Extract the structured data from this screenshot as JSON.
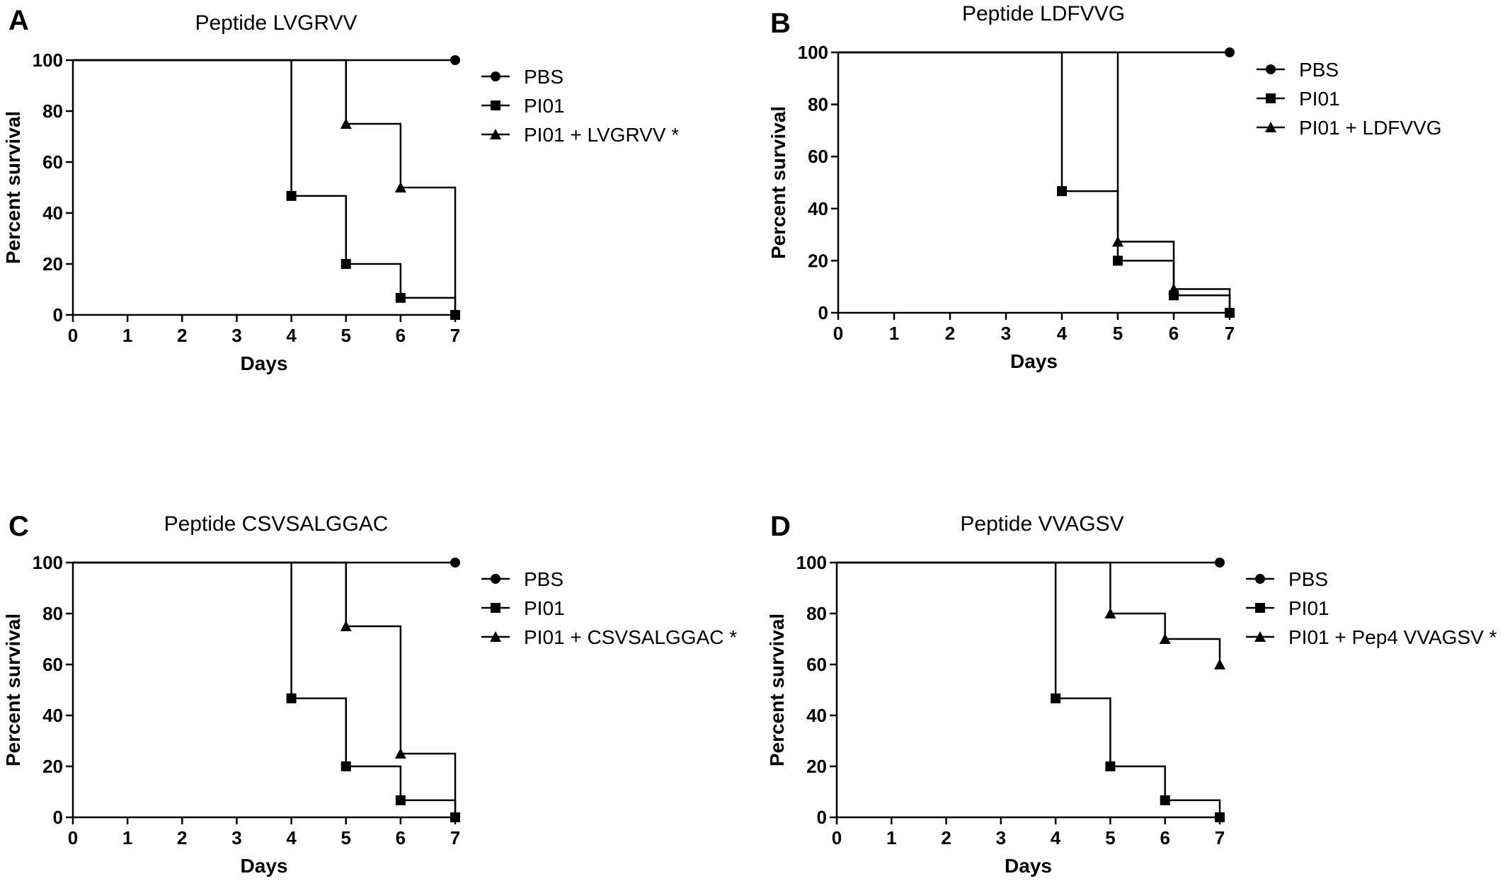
{
  "figure": {
    "panels": [
      {
        "letter": "A",
        "chart_index": 0
      },
      {
        "letter": "B",
        "chart_index": 1
      },
      {
        "letter": "C",
        "chart_index": 2
      },
      {
        "letter": "D",
        "chart_index": 3
      }
    ]
  },
  "chart_data": [
    {
      "type": "line",
      "subtype": "kaplan-meier",
      "title": "Peptide LVGRVV",
      "xlabel": "Days",
      "ylabel": "Percent survival",
      "xlim": [
        0,
        7
      ],
      "ylim": [
        0,
        100
      ],
      "xticks": [
        0,
        1,
        2,
        3,
        4,
        5,
        6,
        7
      ],
      "yticks": [
        0,
        20,
        40,
        60,
        80,
        100
      ],
      "legend_position": "right",
      "series": [
        {
          "name": "PBS",
          "marker": "circle",
          "x": [
            0,
            7
          ],
          "y": [
            100,
            100
          ],
          "marker_points": [
            [
              7,
              100
            ]
          ]
        },
        {
          "name": "PI01",
          "marker": "square",
          "x": [
            0,
            4,
            5,
            6,
            7
          ],
          "y": [
            100,
            46.7,
            20,
            6.7,
            0
          ],
          "marker_points": [
            [
              4,
              46.7
            ],
            [
              5,
              20
            ],
            [
              6,
              6.7
            ],
            [
              7,
              0
            ]
          ]
        },
        {
          "name": "PI01 + LVGRVV *",
          "marker": "triangle",
          "x": [
            0,
            5,
            6,
            7
          ],
          "y": [
            100,
            75,
            50,
            0
          ],
          "marker_points": [
            [
              5,
              75
            ],
            [
              6,
              50
            ]
          ]
        }
      ]
    },
    {
      "type": "line",
      "subtype": "kaplan-meier",
      "title": "Peptide LDFVVG",
      "xlabel": "Days",
      "ylabel": "Percent survival",
      "xlim": [
        0,
        7
      ],
      "ylim": [
        0,
        100
      ],
      "xticks": [
        0,
        1,
        2,
        3,
        4,
        5,
        6,
        7
      ],
      "yticks": [
        0,
        20,
        40,
        60,
        80,
        100
      ],
      "legend_position": "right",
      "series": [
        {
          "name": "PBS",
          "marker": "circle",
          "x": [
            0,
            7
          ],
          "y": [
            100,
            100
          ],
          "marker_points": [
            [
              7,
              100
            ]
          ]
        },
        {
          "name": "PI01",
          "marker": "square",
          "x": [
            0,
            4,
            5,
            6,
            7
          ],
          "y": [
            100,
            46.7,
            20,
            6.7,
            0
          ],
          "marker_points": [
            [
              4,
              46.7
            ],
            [
              5,
              20
            ],
            [
              6,
              6.7
            ],
            [
              7,
              0
            ]
          ]
        },
        {
          "name": "PI01 + LDFVVG",
          "marker": "triangle",
          "x": [
            0,
            5,
            6,
            7
          ],
          "y": [
            100,
            27.3,
            9.1,
            0
          ],
          "marker_points": [
            [
              5,
              27.3
            ],
            [
              6,
              9.1
            ]
          ]
        }
      ]
    },
    {
      "type": "line",
      "subtype": "kaplan-meier",
      "title": "Peptide CSVSALGGAC",
      "xlabel": "Days",
      "ylabel": "Percent survival",
      "xlim": [
        0,
        7
      ],
      "ylim": [
        0,
        100
      ],
      "xticks": [
        0,
        1,
        2,
        3,
        4,
        5,
        6,
        7
      ],
      "yticks": [
        0,
        20,
        40,
        60,
        80,
        100
      ],
      "legend_position": "right",
      "series": [
        {
          "name": "PBS",
          "marker": "circle",
          "x": [
            0,
            7
          ],
          "y": [
            100,
            100
          ],
          "marker_points": [
            [
              7,
              100
            ]
          ]
        },
        {
          "name": "PI01",
          "marker": "square",
          "x": [
            0,
            4,
            5,
            6,
            7
          ],
          "y": [
            100,
            46.7,
            20,
            6.7,
            0
          ],
          "marker_points": [
            [
              4,
              46.7
            ],
            [
              5,
              20
            ],
            [
              6,
              6.7
            ],
            [
              7,
              0
            ]
          ]
        },
        {
          "name": "PI01 + CSVSALGGAC *",
          "marker": "triangle",
          "x": [
            0,
            5,
            6,
            7
          ],
          "y": [
            100,
            75,
            25,
            0
          ],
          "marker_points": [
            [
              5,
              75
            ],
            [
              6,
              25
            ]
          ]
        }
      ]
    },
    {
      "type": "line",
      "subtype": "kaplan-meier",
      "title": "Peptide VVAGSV",
      "xlabel": "Days",
      "ylabel": "Percent survival",
      "xlim": [
        0,
        7
      ],
      "ylim": [
        0,
        100
      ],
      "xticks": [
        0,
        1,
        2,
        3,
        4,
        5,
        6,
        7
      ],
      "yticks": [
        0,
        20,
        40,
        60,
        80,
        100
      ],
      "legend_position": "right",
      "series": [
        {
          "name": "PBS",
          "marker": "circle",
          "x": [
            0,
            7
          ],
          "y": [
            100,
            100
          ],
          "marker_points": [
            [
              7,
              100
            ]
          ]
        },
        {
          "name": "PI01",
          "marker": "square",
          "x": [
            0,
            4,
            5,
            6,
            7
          ],
          "y": [
            100,
            46.7,
            20,
            6.7,
            0
          ],
          "marker_points": [
            [
              4,
              46.7
            ],
            [
              5,
              20
            ],
            [
              6,
              6.7
            ],
            [
              7,
              0
            ]
          ]
        },
        {
          "name": "PI01 + Pep4 VVAGSV *",
          "marker": "triangle",
          "x": [
            0,
            5,
            6,
            7
          ],
          "y": [
            100,
            80,
            70,
            60
          ],
          "marker_points": [
            [
              5,
              80
            ],
            [
              6,
              70
            ],
            [
              7,
              60
            ]
          ]
        }
      ]
    }
  ]
}
